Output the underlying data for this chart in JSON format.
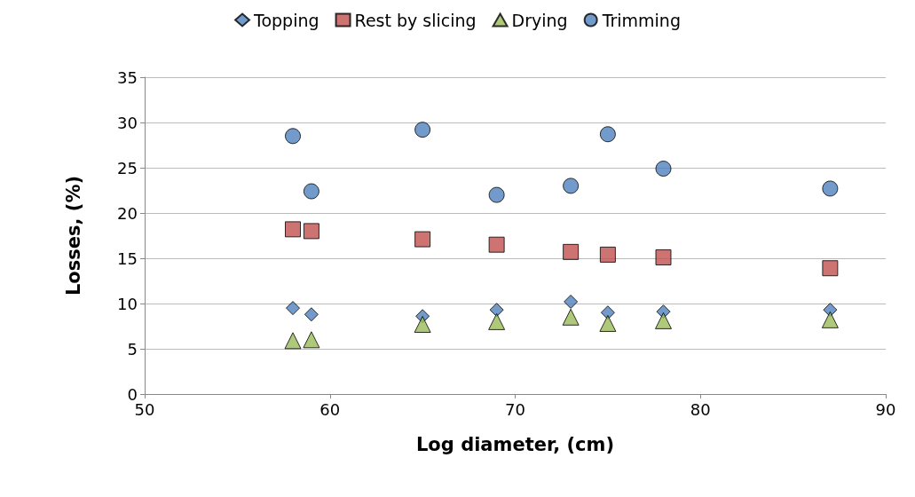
{
  "chart_data": {
    "type": "scatter",
    "xlabel": "Log diameter, (cm)",
    "ylabel": "Losses, (%)",
    "xlim": [
      50,
      90
    ],
    "xticks": [
      50,
      60,
      70,
      80,
      90
    ],
    "ylim": [
      0,
      35
    ],
    "yticks": [
      0,
      5,
      10,
      15,
      20,
      25,
      30,
      35
    ],
    "grid": "y",
    "legend": "top",
    "x": [
      58,
      59,
      65,
      69,
      73,
      75,
      78,
      87
    ],
    "series": [
      {
        "name": "Topping",
        "color": "#4f81bd",
        "marker": "diamond",
        "values": [
          9.5,
          8.8,
          8.6,
          9.3,
          10.2,
          9.0,
          9.1,
          9.3
        ]
      },
      {
        "name": "Rest by slicing",
        "color": "#c0504d",
        "marker": "square",
        "values": [
          18.2,
          18.0,
          17.1,
          16.5,
          15.7,
          15.4,
          15.1,
          13.9
        ]
      },
      {
        "name": "Drying",
        "color": "#9bbb59",
        "marker": "triangle",
        "values": [
          5.9,
          6.0,
          7.7,
          8.0,
          8.5,
          7.8,
          8.1,
          8.2
        ]
      },
      {
        "name": "Trimming",
        "color": "#4f81bd",
        "marker": "circle",
        "values": [
          28.5,
          22.4,
          29.2,
          22.0,
          23.0,
          28.7,
          24.9,
          22.7
        ]
      }
    ]
  }
}
